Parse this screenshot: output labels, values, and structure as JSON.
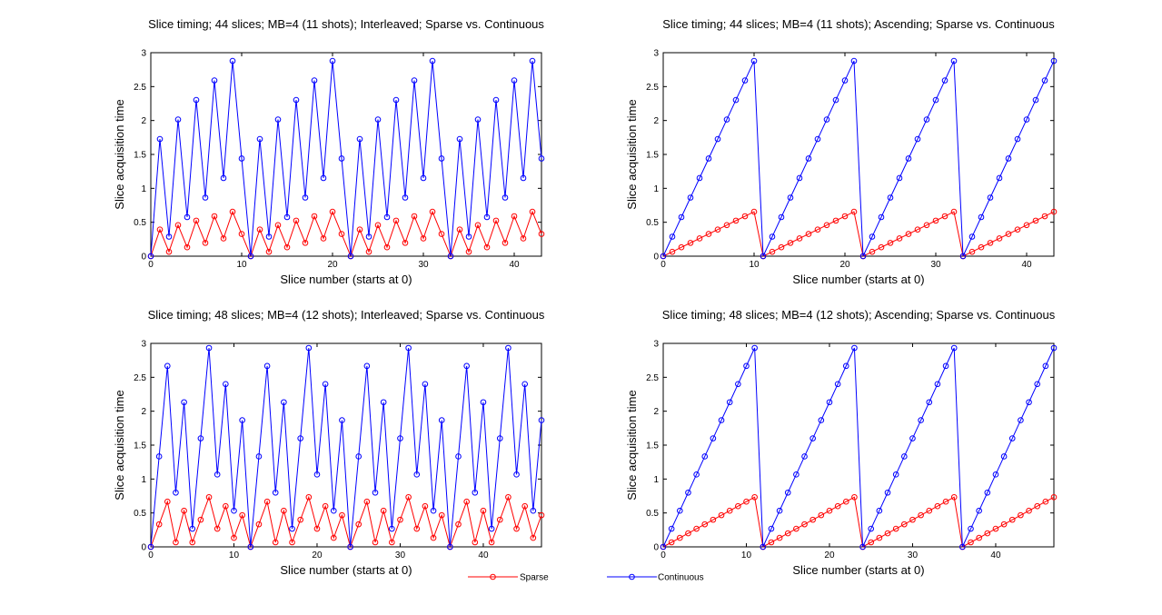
{
  "figure": {
    "legend": {
      "entries": [
        {
          "label": "Sparse",
          "color": "#ff0000",
          "marker": "circle"
        },
        {
          "label": "Continuous",
          "color": "#0000ff",
          "marker": "circle"
        }
      ]
    }
  },
  "chart_data": [
    {
      "type": "line",
      "title": "Slice timing; 44 slices; MB=4 (11 shots); Interleaved; Sparse vs. Continuous",
      "xlabel": "Slice number (starts at 0)",
      "ylabel": "Slice acquisition time",
      "xlim": [
        0,
        43
      ],
      "ylim": [
        0,
        3
      ],
      "xticks": [
        0,
        10,
        20,
        30,
        40
      ],
      "yticks": [
        0,
        0.5,
        1,
        1.5,
        2,
        2.5,
        3
      ],
      "grid": false,
      "shots": 11,
      "slices": 44,
      "order": "interleaved",
      "series": [
        {
          "name": "Sparse",
          "color": "#ff0000",
          "repeat_period": 11,
          "values_first_period": [
            0,
            0.393,
            0.065,
            0.458,
            0.131,
            0.524,
            0.196,
            0.589,
            0.262,
            0.655,
            0.327
          ]
        },
        {
          "name": "Continuous",
          "color": "#0000ff",
          "repeat_period": 11,
          "values_first_period": [
            0,
            1.727,
            0.288,
            2.015,
            0.576,
            2.303,
            0.864,
            2.591,
            1.152,
            2.879,
            1.44
          ]
        }
      ]
    },
    {
      "type": "line",
      "title": "Slice timing; 44 slices; MB=4 (11 shots); Ascending; Sparse vs. Continuous",
      "xlabel": "Slice number (starts at 0)",
      "ylabel": "Slice acquisition time",
      "xlim": [
        0,
        43
      ],
      "ylim": [
        0,
        3
      ],
      "xticks": [
        0,
        10,
        20,
        30,
        40
      ],
      "yticks": [
        0,
        0.5,
        1,
        1.5,
        2,
        2.5,
        3
      ],
      "grid": false,
      "shots": 11,
      "slices": 44,
      "order": "ascending",
      "series": [
        {
          "name": "Sparse",
          "color": "#ff0000",
          "repeat_period": 11,
          "values_first_period": [
            0,
            0.065,
            0.131,
            0.196,
            0.262,
            0.327,
            0.393,
            0.458,
            0.524,
            0.589,
            0.655
          ]
        },
        {
          "name": "Continuous",
          "color": "#0000ff",
          "repeat_period": 11,
          "values_first_period": [
            0,
            0.288,
            0.576,
            0.864,
            1.152,
            1.44,
            1.727,
            2.015,
            2.303,
            2.591,
            2.879
          ]
        }
      ]
    },
    {
      "type": "line",
      "title": "Slice timing; 48 slices; MB=4 (12 shots); Interleaved; Sparse vs. Continuous",
      "xlabel": "Slice number (starts at 0)",
      "ylabel": "Slice acquisition time",
      "xlim": [
        0,
        47
      ],
      "ylim": [
        0,
        3
      ],
      "xticks": [
        0,
        10,
        20,
        30,
        40
      ],
      "yticks": [
        0,
        0.5,
        1,
        1.5,
        2,
        2.5,
        3
      ],
      "grid": false,
      "shots": 12,
      "slices": 48,
      "order": "interleaved",
      "series": [
        {
          "name": "Sparse",
          "color": "#ff0000",
          "repeat_period": 12,
          "values_first_period": [
            0,
            0.333,
            0.667,
            0.067,
            0.533,
            0.067,
            0.4,
            0.733,
            0.267,
            0.6,
            0.133,
            0.467
          ]
        },
        {
          "name": "Continuous",
          "color": "#0000ff",
          "repeat_period": 12,
          "values_first_period": [
            0,
            1.333,
            2.667,
            0.8,
            2.133,
            0.267,
            1.6,
            2.933,
            1.067,
            2.4,
            0.533,
            1.867
          ]
        }
      ]
    },
    {
      "type": "line",
      "title": "Slice timing; 48 slices; MB=4 (12 shots); Ascending; Sparse vs. Continuous",
      "xlabel": "Slice number (starts at 0)",
      "ylabel": "Slice acquisition time",
      "xlim": [
        0,
        47
      ],
      "ylim": [
        0,
        3
      ],
      "xticks": [
        0,
        10,
        20,
        30,
        40
      ],
      "yticks": [
        0,
        0.5,
        1,
        1.5,
        2,
        2.5,
        3
      ],
      "grid": false,
      "shots": 12,
      "slices": 48,
      "order": "ascending",
      "series": [
        {
          "name": "Sparse",
          "color": "#ff0000",
          "repeat_period": 12,
          "values_first_period": [
            0,
            0.067,
            0.133,
            0.2,
            0.267,
            0.333,
            0.4,
            0.467,
            0.533,
            0.6,
            0.667,
            0.733
          ]
        },
        {
          "name": "Continuous",
          "color": "#0000ff",
          "repeat_period": 12,
          "values_first_period": [
            0,
            0.267,
            0.533,
            0.8,
            1.067,
            1.333,
            1.6,
            1.867,
            2.133,
            2.4,
            2.667,
            2.933
          ]
        }
      ]
    }
  ]
}
